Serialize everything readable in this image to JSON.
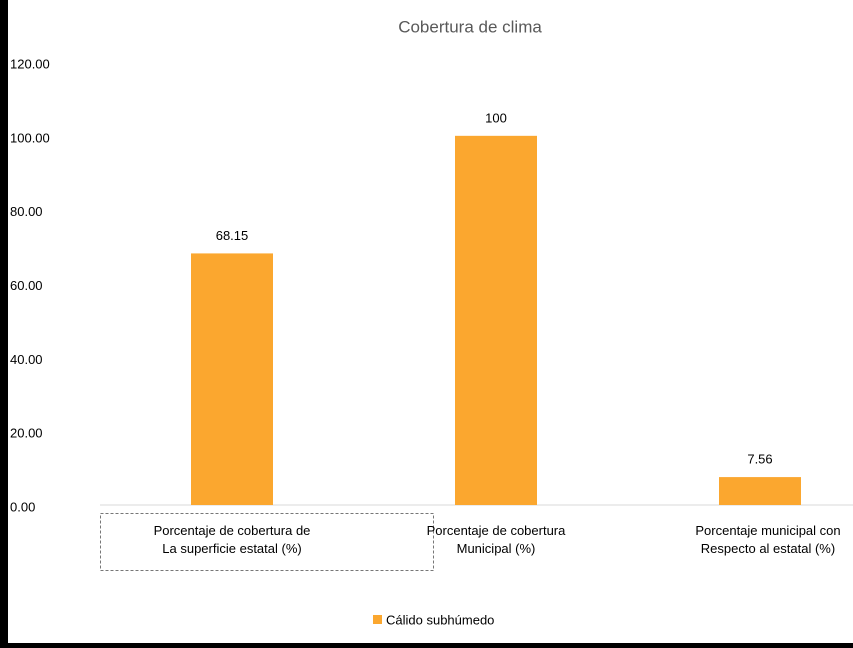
{
  "chart_data": {
    "type": "bar",
    "title": "Cobertura de clima",
    "categories": [
      "Porcentaje de cobertura de\nLa superficie estatal (%)",
      "Porcentaje de cobertura\nMunicipal (%)",
      "Porcentaje municipal con\nRespecto al estatal (%)"
    ],
    "series": [
      {
        "name": "Cálido subhúmedo",
        "color": "#fba72f",
        "values": [
          68.15,
          100,
          7.56
        ]
      }
    ],
    "ylim": [
      0,
      120
    ],
    "yticks": [
      {
        "value": 0,
        "label": "0.00"
      },
      {
        "value": 20,
        "label": "20.00"
      },
      {
        "value": 40,
        "label": "40.00"
      },
      {
        "value": 60,
        "label": "60.00"
      },
      {
        "value": 80,
        "label": "80.00"
      },
      {
        "value": 100,
        "label": "100.00"
      },
      {
        "value": 120,
        "label": "120.00"
      }
    ],
    "legend": "bottom",
    "grid": false
  }
}
